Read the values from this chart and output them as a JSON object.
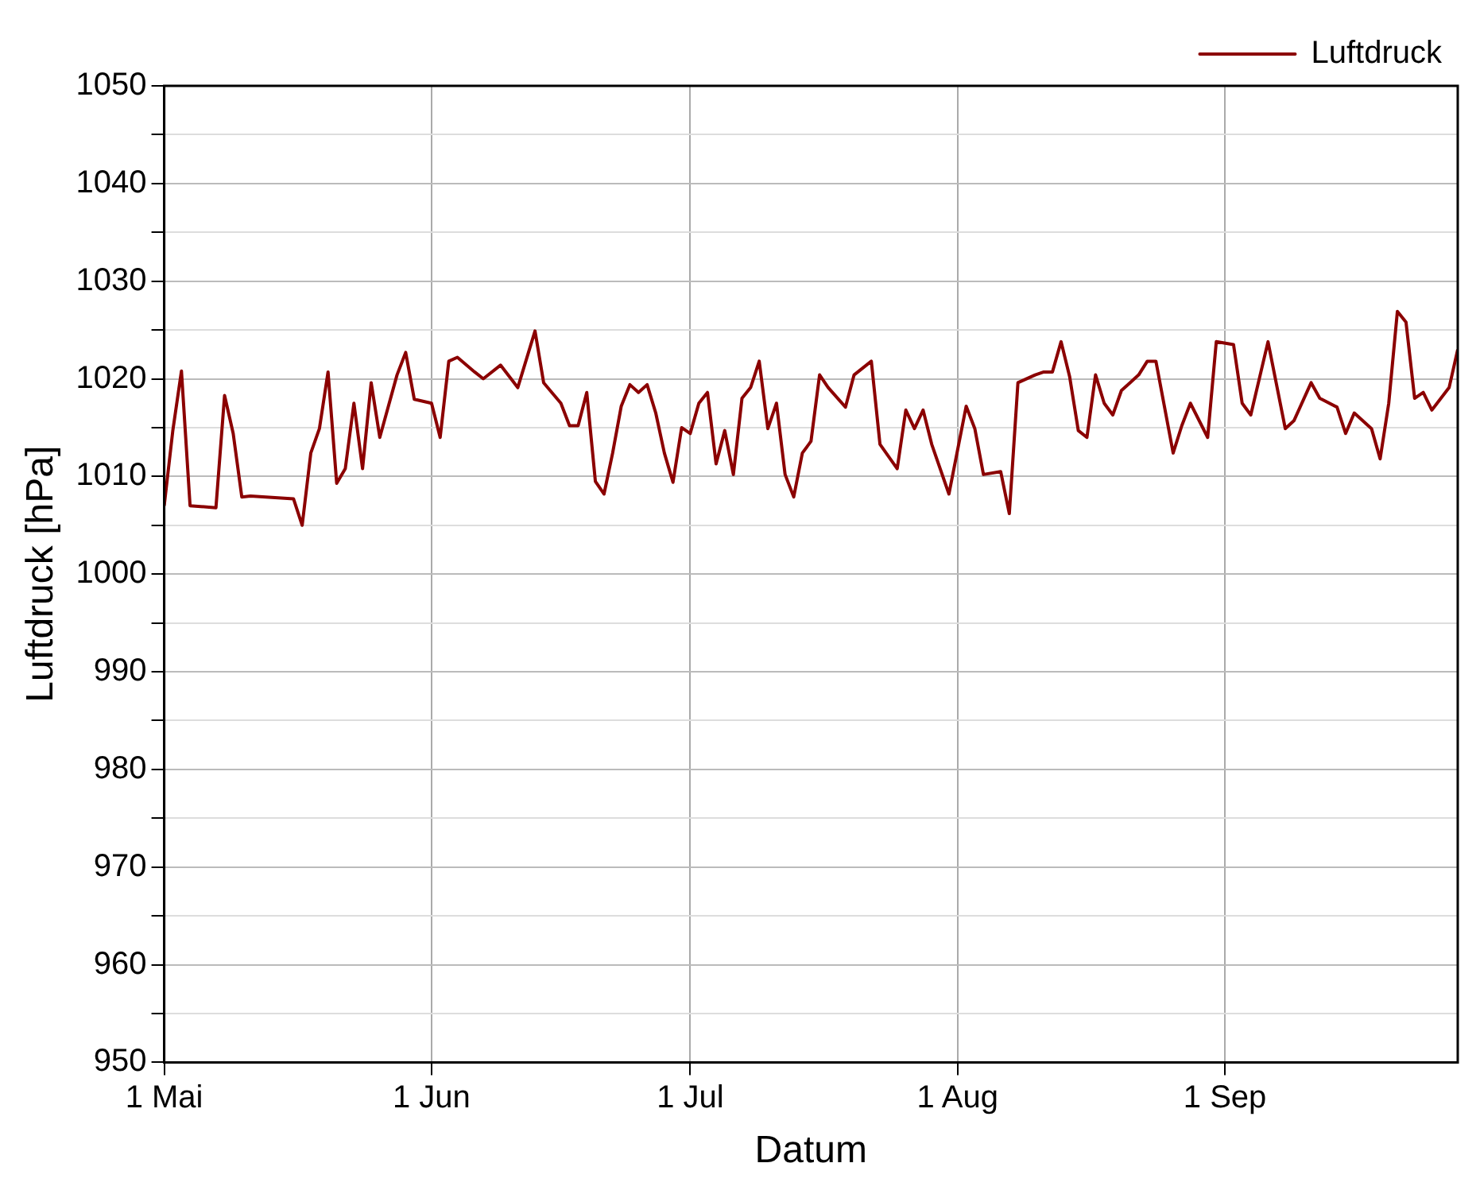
{
  "chart_data": {
    "type": "line",
    "xlabel": "Datum",
    "ylabel": "Luftdruck [hPa]",
    "xlim": [
      "--05-01",
      "--09-28"
    ],
    "xticks": [
      {
        "value": "--05-01",
        "label": "1 Mai"
      },
      {
        "value": "--06-01",
        "label": "1 Jun"
      },
      {
        "value": "--07-01",
        "label": "1 Jul"
      },
      {
        "value": "--08-01",
        "label": "1 Aug"
      },
      {
        "value": "--09-01",
        "label": "1 Sep"
      }
    ],
    "ylim": [
      950,
      1050
    ],
    "yticks": [
      950,
      {
        "value": 955,
        "label": null
      },
      960,
      {
        "value": 965,
        "label": null
      },
      970,
      {
        "value": 975,
        "label": null
      },
      980,
      {
        "value": 985,
        "label": null
      },
      990,
      {
        "value": 995,
        "label": null
      },
      1000,
      {
        "value": 1005,
        "label": null
      },
      1010,
      {
        "value": 1015,
        "label": null
      },
      1020,
      {
        "value": 1025,
        "label": null
      },
      1030,
      {
        "value": 1035,
        "label": null
      },
      1040,
      {
        "value": 1045,
        "label": null
      },
      1050
    ],
    "grid": true,
    "legend": "top right",
    "marker": "none",
    "line_style": "solid",
    "x": [
      "--05-01",
      "--05-02",
      "--05-03",
      "--05-04",
      "--05-07",
      "--05-08",
      "--05-09",
      "--05-10",
      "--05-11",
      "--05-16",
      "--05-17",
      "--05-18",
      "--05-19",
      "--05-20",
      "--05-21",
      "--05-22",
      "--05-23",
      "--05-24",
      "--05-25",
      "--05-26",
      "--05-28",
      "--05-29",
      "--05-30",
      "--06-01",
      "--06-02",
      "--06-03",
      "--06-04",
      "--06-06",
      "--06-07",
      "--06-09",
      "--06-11",
      "--06-13",
      "--06-14",
      "--06-16",
      "--06-17",
      "--06-18",
      "--06-19",
      "--06-20",
      "--06-21",
      "--06-22",
      "--06-23",
      "--06-24",
      "--06-25",
      "--06-26",
      "--06-27",
      "--06-28",
      "--06-29",
      "--06-30",
      "--07-01",
      "--07-02",
      "--07-03",
      "--07-04",
      "--07-05",
      "--07-06",
      "--07-07",
      "--07-08",
      "--07-09",
      "--07-10",
      "--07-11",
      "--07-12",
      "--07-13",
      "--07-14",
      "--07-15",
      "--07-16",
      "--07-17",
      "--07-19",
      "--07-20",
      "--07-22",
      "--07-23",
      "--07-25",
      "--07-26",
      "--07-27",
      "--07-28",
      "--07-29",
      "--07-31",
      "--08-02",
      "--08-03",
      "--08-04",
      "--08-06",
      "--08-07",
      "--08-08",
      "--08-10",
      "--08-11",
      "--08-12",
      "--08-13",
      "--08-14",
      "--08-15",
      "--08-16",
      "--08-17",
      "--08-18",
      "--08-19",
      "--08-20",
      "--08-21",
      "--08-22",
      "--08-23",
      "--08-24",
      "--08-26",
      "--08-27",
      "--08-28",
      "--08-30",
      "--08-31",
      "--09-02",
      "--09-03",
      "--09-04",
      "--09-06",
      "--09-08",
      "--09-09",
      "--09-11",
      "--09-12",
      "--09-14",
      "--09-15",
      "--09-16",
      "--09-18",
      "--09-19",
      "--09-20",
      "--09-21",
      "--09-22",
      "--09-23",
      "--09-24",
      "--09-25",
      "--09-27",
      "--09-28"
    ],
    "series": [
      {
        "name": "Luftdruck",
        "color": "#8b0000",
        "values": [
          1007,
          1014.7,
          1020.8,
          1007,
          1006.8,
          1018.3,
          1014.4,
          1007.9,
          1008,
          1007.7,
          1005,
          1012.4,
          1014.9,
          1020.7,
          1009.3,
          1010.8,
          1017.5,
          1010.8,
          1019.6,
          1014,
          1020.4,
          1022.7,
          1017.9,
          1017.5,
          1014,
          1021.8,
          1022.2,
          1020.7,
          1020,
          1021.4,
          1019.1,
          1024.9,
          1019.6,
          1017.5,
          1015.2,
          1015.2,
          1018.6,
          1009.5,
          1008.2,
          1012.4,
          1017.2,
          1019.4,
          1018.6,
          1019.4,
          1016.5,
          1012.4,
          1009.4,
          1015,
          1014.4,
          1017.5,
          1018.6,
          1011.3,
          1014.7,
          1010.2,
          1018,
          1019.1,
          1021.8,
          1014.9,
          1017.5,
          1010.2,
          1007.9,
          1012.4,
          1013.6,
          1020.4,
          1019.1,
          1017.1,
          1020.4,
          1021.8,
          1013.3,
          1010.8,
          1016.8,
          1014.9,
          1016.8,
          1013.3,
          1008.2,
          1017.2,
          1014.9,
          1010.2,
          1010.5,
          1006.2,
          1019.6,
          1020.4,
          1020.7,
          1020.7,
          1023.8,
          1020.2,
          1014.7,
          1014,
          1020.4,
          1017.5,
          1016.3,
          1018.8,
          1019.6,
          1020.4,
          1021.8,
          1021.8,
          1012.4,
          1015.2,
          1017.5,
          1014,
          1023.8,
          1023.5,
          1017.5,
          1016.3,
          1023.8,
          1014.9,
          1015.7,
          1019.6,
          1018,
          1017.1,
          1014.4,
          1016.5,
          1014.9,
          1011.8,
          1017.5,
          1026.9,
          1025.8,
          1018,
          1018.6,
          1016.8,
          1019.1,
          1023
        ]
      }
    ]
  }
}
